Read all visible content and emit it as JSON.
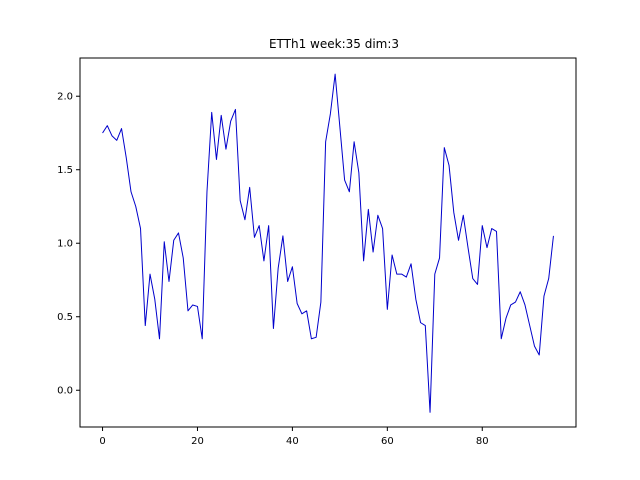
{
  "chart_data": {
    "type": "line",
    "title": "ETTh1 week:35 dim:3",
    "xlabel": "",
    "ylabel": "",
    "xlim": [
      -4.75,
      99.75
    ],
    "ylim": [
      -0.25,
      2.26
    ],
    "xticks": [
      0,
      20,
      40,
      60,
      80
    ],
    "yticks": [
      0.0,
      0.5,
      1.0,
      1.5,
      2.0
    ],
    "ytick_labels": [
      "0.0",
      "0.5",
      "1.0",
      "1.5",
      "2.0"
    ],
    "grid": false,
    "line_color": "#0000cc",
    "x": [
      0,
      1,
      2,
      3,
      4,
      5,
      6,
      7,
      8,
      9,
      10,
      11,
      12,
      13,
      14,
      15,
      16,
      17,
      18,
      19,
      20,
      21,
      22,
      23,
      24,
      25,
      26,
      27,
      28,
      29,
      30,
      31,
      32,
      33,
      34,
      35,
      36,
      37,
      38,
      39,
      40,
      41,
      42,
      43,
      44,
      45,
      46,
      47,
      48,
      49,
      50,
      51,
      52,
      53,
      54,
      55,
      56,
      57,
      58,
      59,
      60,
      61,
      62,
      63,
      64,
      65,
      66,
      67,
      68,
      69,
      70,
      71,
      72,
      73,
      74,
      75,
      76,
      77,
      78,
      79,
      80,
      81,
      82,
      83,
      84,
      85,
      86,
      87,
      88,
      89,
      90,
      91,
      92,
      93,
      94,
      95
    ],
    "values": [
      1.75,
      1.8,
      1.73,
      1.7,
      1.78,
      1.58,
      1.35,
      1.25,
      1.1,
      0.44,
      0.79,
      0.62,
      0.35,
      1.01,
      0.74,
      1.02,
      1.07,
      0.9,
      0.54,
      0.58,
      0.57,
      0.35,
      1.35,
      1.89,
      1.57,
      1.87,
      1.64,
      1.83,
      1.91,
      1.29,
      1.16,
      1.38,
      1.04,
      1.12,
      0.88,
      1.12,
      0.42,
      0.83,
      1.05,
      0.74,
      0.84,
      0.59,
      0.52,
      0.54,
      0.35,
      0.36,
      0.6,
      1.69,
      1.88,
      2.15,
      1.79,
      1.43,
      1.35,
      1.69,
      1.48,
      0.88,
      1.23,
      0.94,
      1.19,
      1.1,
      0.55,
      0.92,
      0.79,
      0.79,
      0.77,
      0.86,
      0.62,
      0.46,
      0.44,
      -0.15,
      0.79,
      0.9,
      1.65,
      1.53,
      1.21,
      1.02,
      1.19,
      0.97,
      0.76,
      0.72,
      1.12,
      0.97,
      1.1,
      1.08,
      0.35,
      0.49,
      0.58,
      0.6,
      0.67,
      0.58,
      0.44,
      0.3,
      0.24,
      0.64,
      0.76,
      1.05
    ]
  }
}
